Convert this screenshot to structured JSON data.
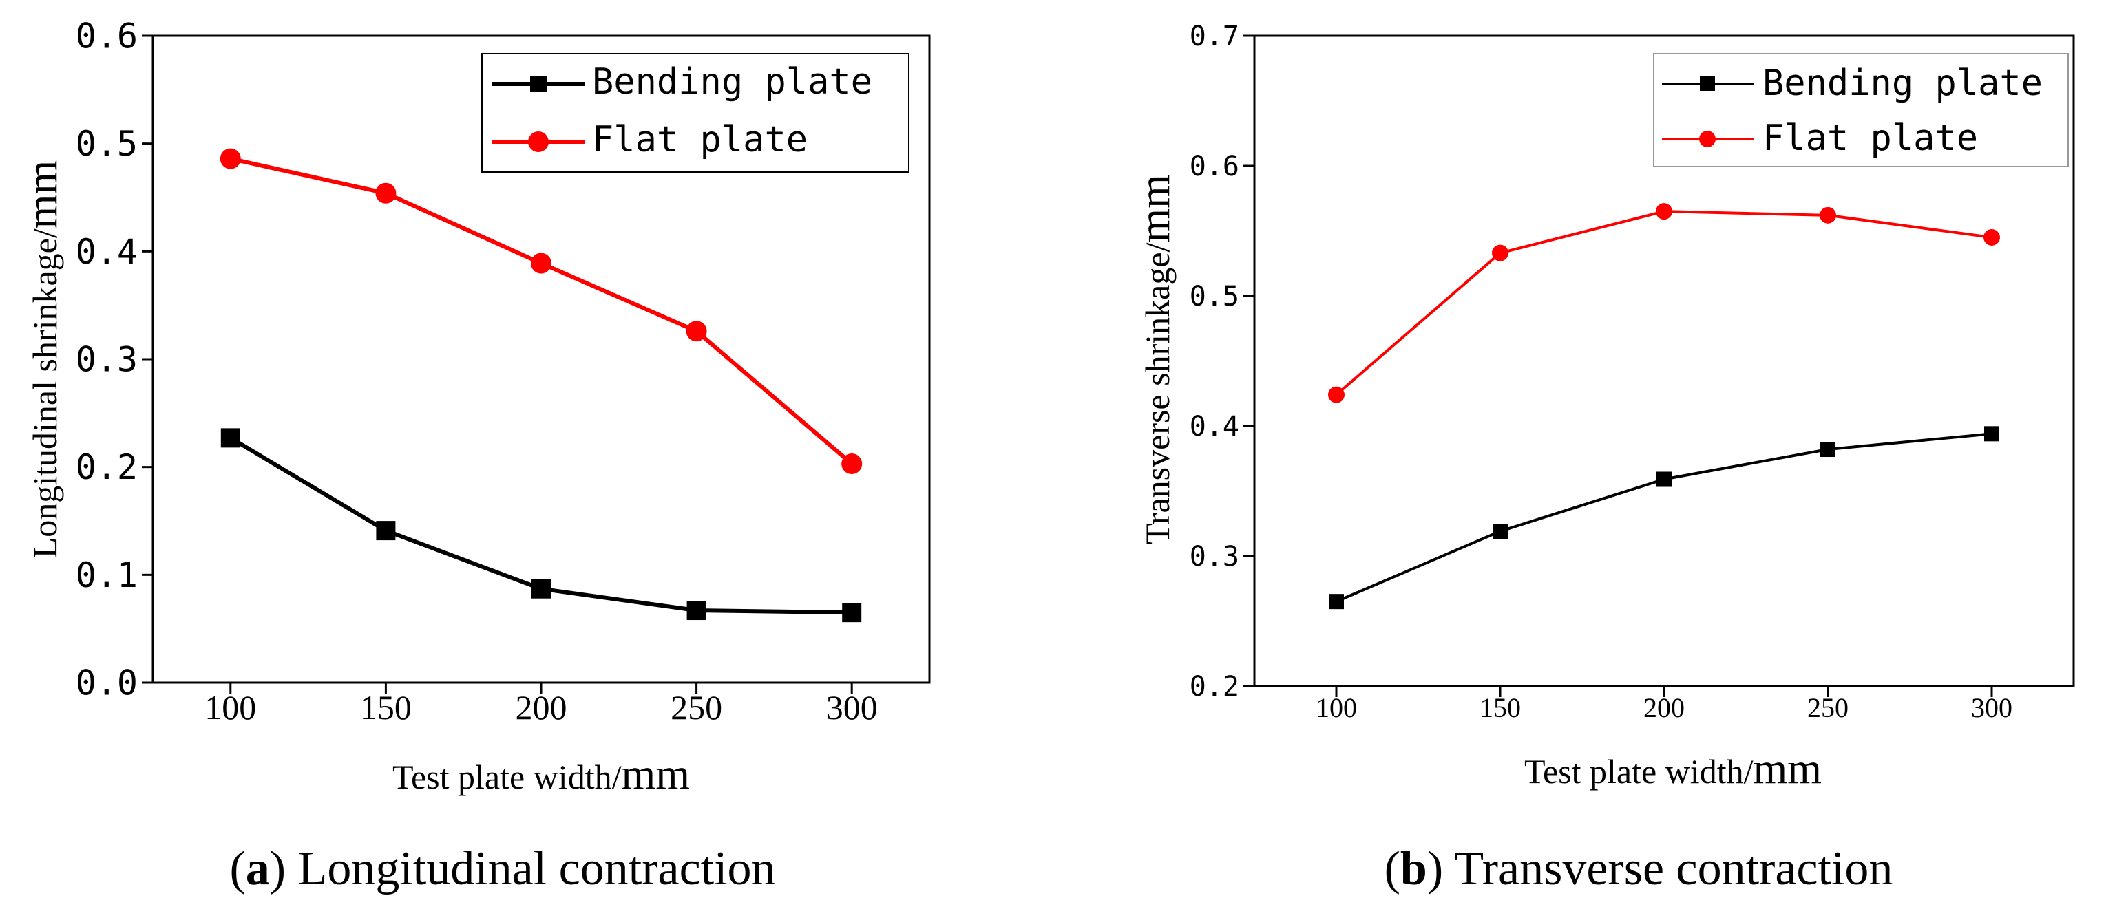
{
  "colors": {
    "black_series": "#000000",
    "red_series": "#ff0000",
    "axis": "#000000",
    "background": "#ffffff"
  },
  "chart_data": [
    {
      "id": "a",
      "type": "line",
      "x": [
        100,
        150,
        200,
        250,
        300
      ],
      "xlim": [
        75,
        325
      ],
      "ylim": [
        0.0,
        0.6
      ],
      "xticks": [
        100,
        150,
        200,
        250,
        300
      ],
      "xtick_labels": [
        "100",
        "150",
        "200",
        "250",
        "300"
      ],
      "yticks": [
        0.0,
        0.1,
        0.2,
        0.3,
        0.4,
        0.5,
        0.6
      ],
      "ytick_labels": [
        "0.0",
        "0.1",
        "0.2",
        "0.3",
        "0.4",
        "0.5",
        "0.6"
      ],
      "xlabel": {
        "main": "Test plate width/",
        "unit": "mm"
      },
      "ylabel": {
        "main": "Longitudinal shrinkage/",
        "unit": "mm"
      },
      "legend_position": "top-right",
      "grid": false,
      "series": [
        {
          "name": "Bending plate",
          "color": "#000000",
          "marker": "square",
          "values": [
            0.227,
            0.141,
            0.087,
            0.067,
            0.065
          ]
        },
        {
          "name": "Flat plate",
          "color": "#ff0000",
          "marker": "circle",
          "values": [
            0.486,
            0.454,
            0.389,
            0.326,
            0.203
          ]
        }
      ],
      "caption": {
        "label": "a",
        "text": "Longitudinal contraction"
      }
    },
    {
      "id": "b",
      "type": "line",
      "x": [
        100,
        150,
        200,
        250,
        300
      ],
      "xlim": [
        75,
        325
      ],
      "ylim": [
        0.2,
        0.7
      ],
      "xticks": [
        100,
        150,
        200,
        250,
        300
      ],
      "xtick_labels": [
        "100",
        "150",
        "200",
        "250",
        "300"
      ],
      "yticks": [
        0.2,
        0.3,
        0.4,
        0.5,
        0.6,
        0.7
      ],
      "ytick_labels": [
        "0.2",
        "0.3",
        "0.4",
        "0.5",
        "0.6",
        "0.7"
      ],
      "xlabel": {
        "main": "Test plate width/",
        "unit": "mm"
      },
      "ylabel": {
        "main": "Transverse shrinkage/",
        "unit": "mm"
      },
      "legend_position": "top-right",
      "grid": false,
      "series": [
        {
          "name": "Bending plate",
          "color": "#000000",
          "marker": "square",
          "values": [
            0.265,
            0.319,
            0.359,
            0.382,
            0.394
          ]
        },
        {
          "name": "Flat plate",
          "color": "#ff0000",
          "marker": "circle",
          "values": [
            0.424,
            0.533,
            0.565,
            0.562,
            0.545
          ]
        }
      ],
      "caption": {
        "label": "b",
        "text": "Transverse contraction"
      }
    }
  ]
}
